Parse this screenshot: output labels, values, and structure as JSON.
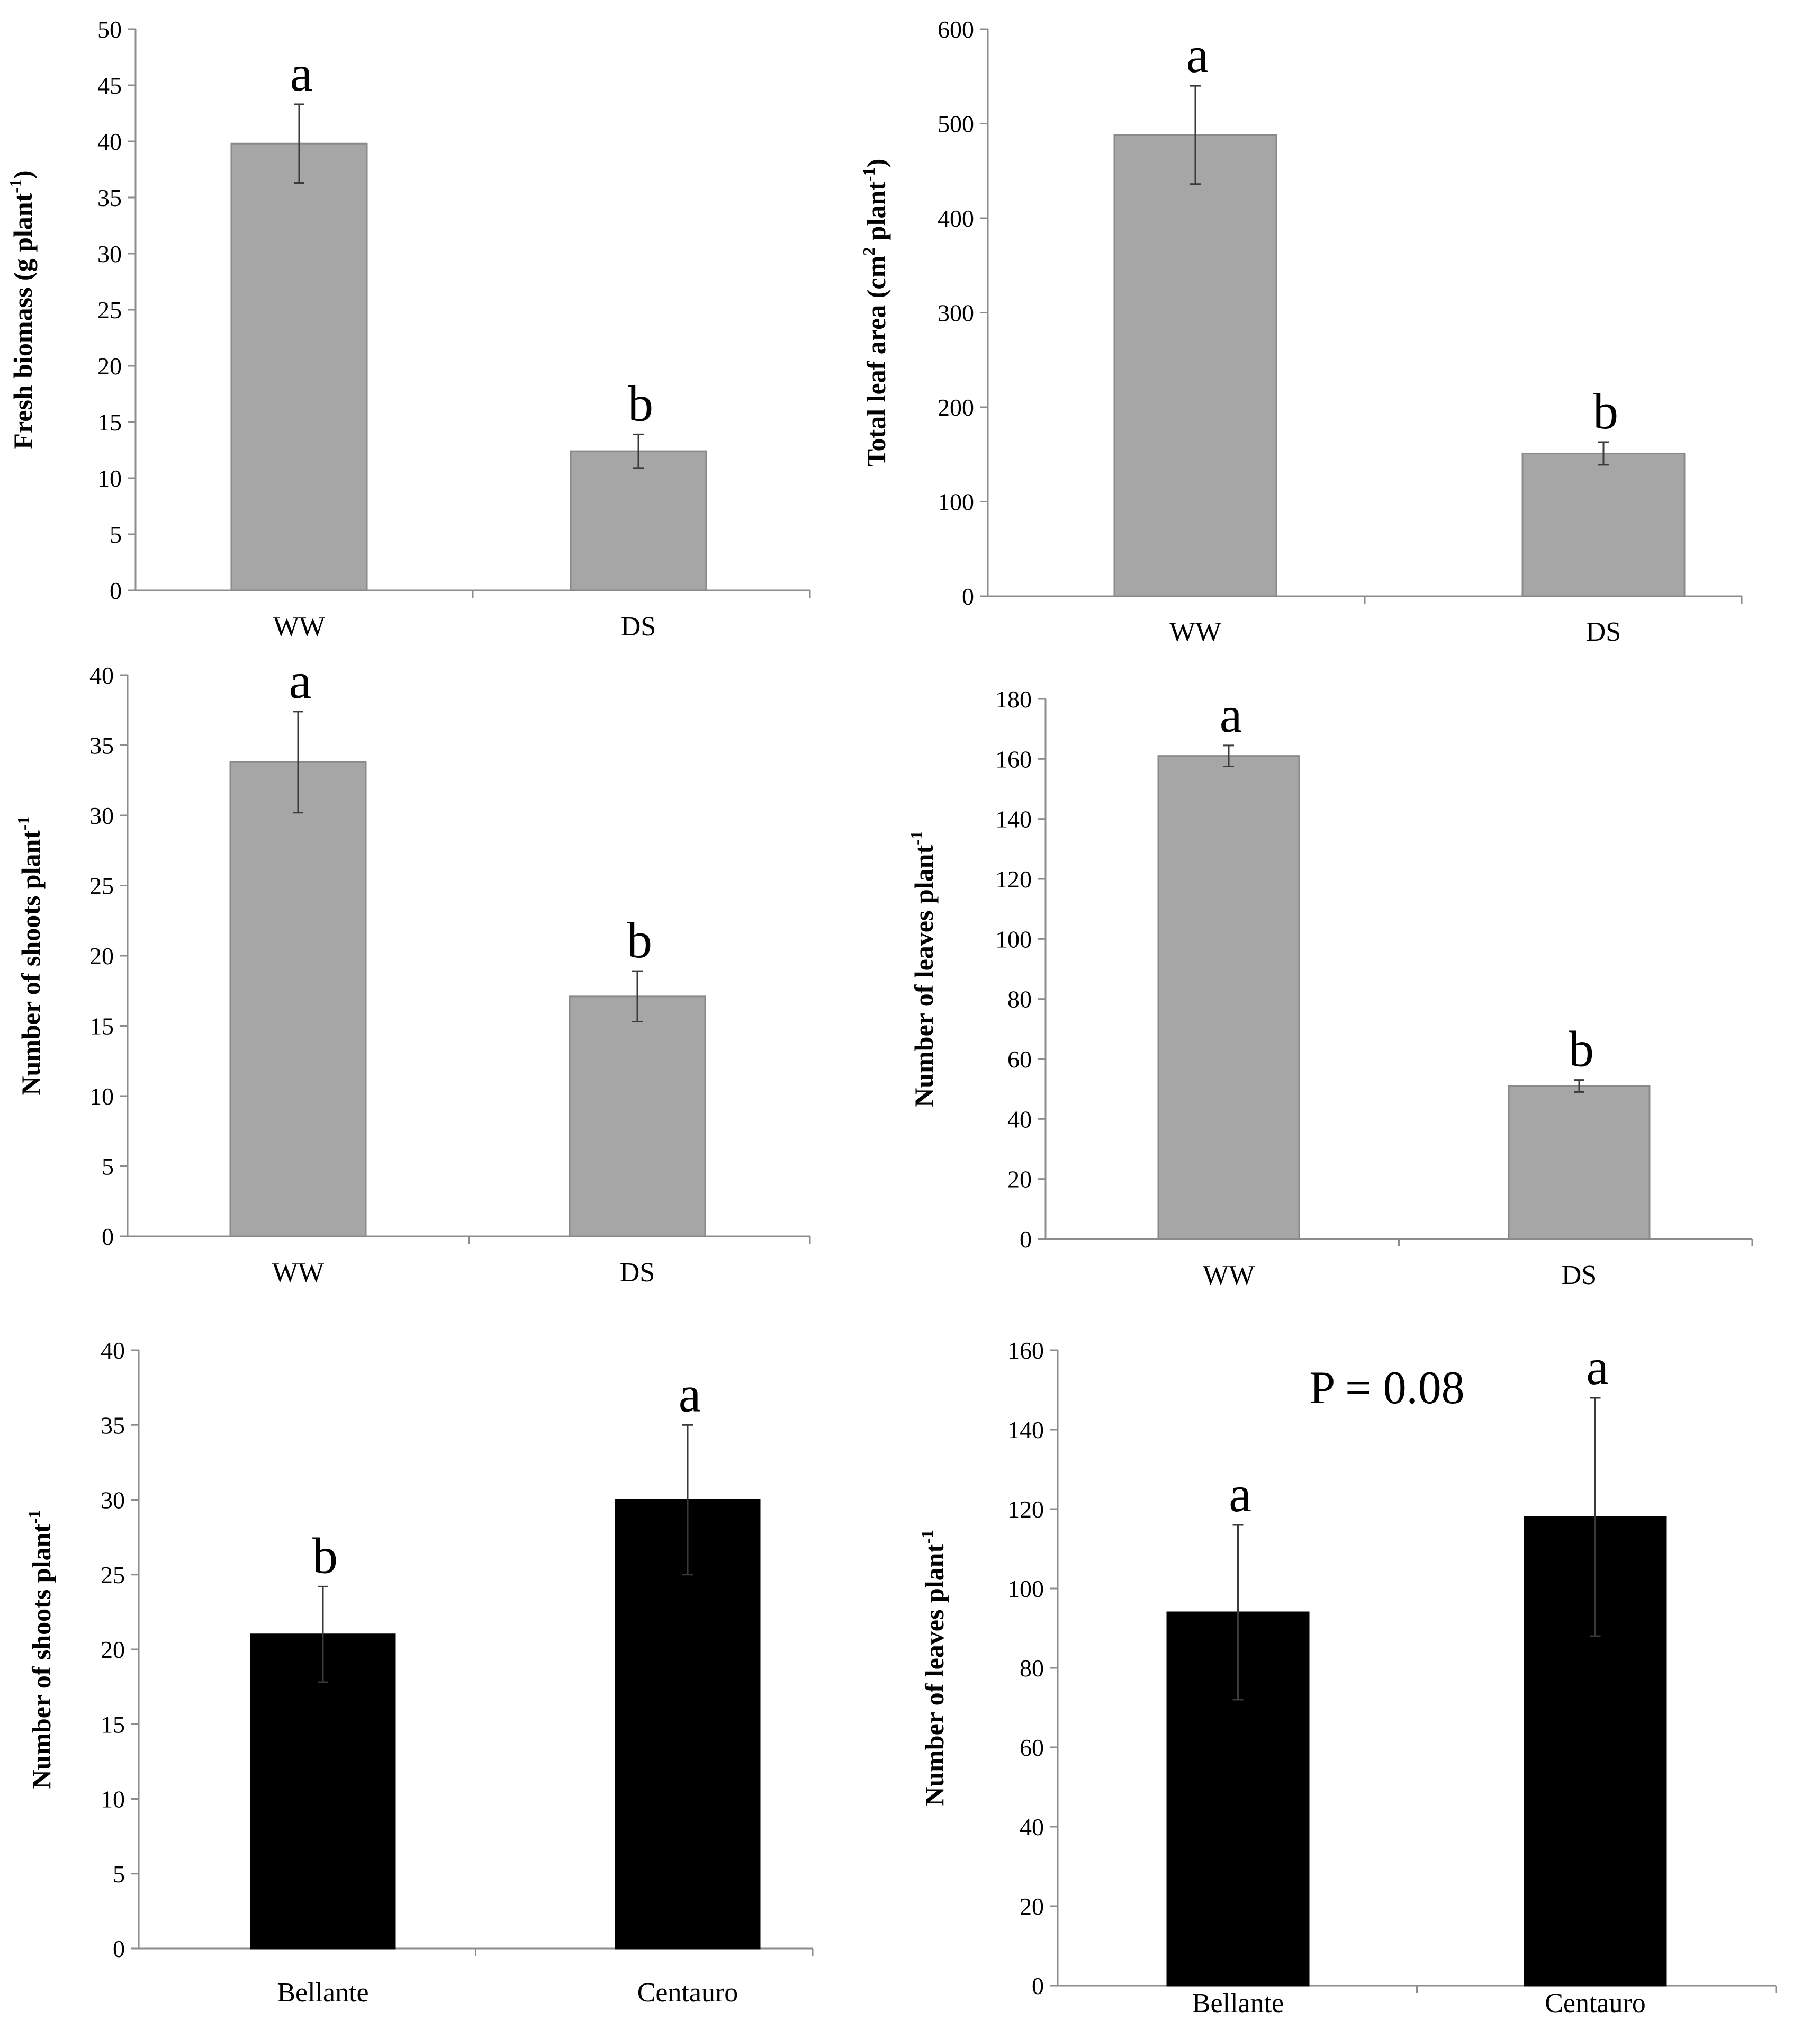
{
  "figure": {
    "description_free": true
  },
  "chart_data": [
    {
      "type": "bar",
      "panel": "top-left",
      "categories": [
        "WW",
        "DS"
      ],
      "values": [
        39.8,
        12.4
      ],
      "errors": [
        3.5,
        1.5
      ],
      "significance": [
        "a",
        "b"
      ],
      "ylabel_main": "Fresh biomass  (g plant",
      "ylabel_sup": "-1",
      "ylabel_end": ")",
      "ylim": [
        0,
        50
      ],
      "yticks": [
        0,
        5,
        10,
        15,
        20,
        25,
        30,
        35,
        40,
        45,
        50
      ],
      "bar_color": "#a6a6a6",
      "bar_edge": "#8a8a8a",
      "note": ""
    },
    {
      "type": "bar",
      "panel": "top-right",
      "categories": [
        "WW",
        "DS"
      ],
      "values": [
        488,
        151
      ],
      "errors": [
        52,
        12
      ],
      "significance": [
        "a",
        "b"
      ],
      "ylabel_main": "Total leaf area   (cm",
      "ylabel_sup": "2",
      "ylabel_mid": " plant",
      "ylabel_sup2": "-1",
      "ylabel_end": ")",
      "ylim": [
        0,
        600
      ],
      "yticks": [
        0,
        100,
        200,
        300,
        400,
        500,
        600
      ],
      "bar_color": "#a6a6a6",
      "bar_edge": "#8a8a8a",
      "note": ""
    },
    {
      "type": "bar",
      "panel": "middle-left",
      "categories": [
        "WW",
        "DS"
      ],
      "values": [
        33.8,
        17.1
      ],
      "errors": [
        3.6,
        1.8
      ],
      "significance": [
        "a",
        "b"
      ],
      "ylabel_main": "Number of shoots  plant",
      "ylabel_sup": "-1",
      "ylabel_end": "",
      "ylim": [
        0,
        40
      ],
      "yticks": [
        0,
        5,
        10,
        15,
        20,
        25,
        30,
        35,
        40
      ],
      "bar_color": "#a6a6a6",
      "bar_edge": "#8a8a8a",
      "note": ""
    },
    {
      "type": "bar",
      "panel": "middle-right",
      "categories": [
        "WW",
        "DS"
      ],
      "values": [
        161,
        51
      ],
      "errors": [
        3.5,
        2
      ],
      "significance": [
        "a",
        "b"
      ],
      "ylabel_main": "Number of leaves   plant",
      "ylabel_sup": "-1",
      "ylabel_end": "",
      "ylim": [
        0,
        180
      ],
      "yticks": [
        0,
        20,
        40,
        60,
        80,
        100,
        120,
        140,
        160,
        180
      ],
      "bar_color": "#a6a6a6",
      "bar_edge": "#8a8a8a",
      "note": ""
    },
    {
      "type": "bar",
      "panel": "bottom-left",
      "categories": [
        "Bellante",
        "Centauro"
      ],
      "values": [
        21,
        30
      ],
      "errors": [
        3.2,
        5
      ],
      "significance": [
        "b",
        "a"
      ],
      "ylabel_main": "Number of shoots  plant",
      "ylabel_sup": "-1",
      "ylabel_end": "",
      "ylim": [
        0,
        40
      ],
      "yticks": [
        0,
        5,
        10,
        15,
        20,
        25,
        30,
        35,
        40
      ],
      "bar_color": "#000000",
      "bar_edge": "#000000",
      "note": ""
    },
    {
      "type": "bar",
      "panel": "bottom-right",
      "categories": [
        "Bellante",
        "Centauro"
      ],
      "values": [
        94,
        118
      ],
      "errors": [
        22,
        30
      ],
      "significance": [
        "a",
        "a"
      ],
      "ylabel_main": "Number of leaves  plant",
      "ylabel_sup": "-1",
      "ylabel_end": "",
      "ylim": [
        0,
        160
      ],
      "yticks": [
        0,
        20,
        40,
        60,
        80,
        100,
        120,
        140,
        160
      ],
      "bar_color": "#000000",
      "bar_edge": "#000000",
      "note": "P = 0.08"
    }
  ]
}
